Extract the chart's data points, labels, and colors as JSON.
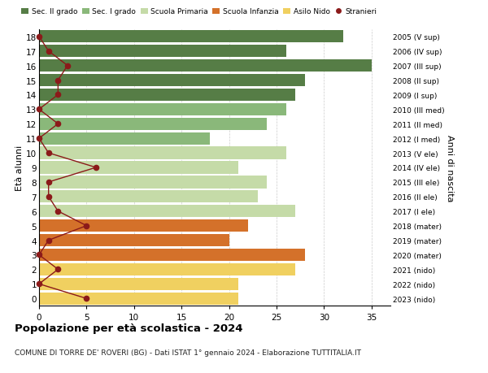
{
  "ages": [
    18,
    17,
    16,
    15,
    14,
    13,
    12,
    11,
    10,
    9,
    8,
    7,
    6,
    5,
    4,
    3,
    2,
    1,
    0
  ],
  "right_labels": [
    "2005 (V sup)",
    "2006 (IV sup)",
    "2007 (III sup)",
    "2008 (II sup)",
    "2009 (I sup)",
    "2010 (III med)",
    "2011 (II med)",
    "2012 (I med)",
    "2013 (V ele)",
    "2014 (IV ele)",
    "2015 (III ele)",
    "2016 (II ele)",
    "2017 (I ele)",
    "2018 (mater)",
    "2019 (mater)",
    "2020 (mater)",
    "2021 (nido)",
    "2022 (nido)",
    "2023 (nido)"
  ],
  "bar_values": [
    32,
    26,
    35,
    28,
    27,
    26,
    24,
    18,
    26,
    21,
    24,
    23,
    27,
    22,
    20,
    28,
    27,
    21,
    21
  ],
  "bar_colors": [
    "#567d46",
    "#567d46",
    "#567d46",
    "#567d46",
    "#567d46",
    "#8ab87a",
    "#8ab87a",
    "#8ab87a",
    "#c5dba8",
    "#c5dba8",
    "#c5dba8",
    "#c5dba8",
    "#c5dba8",
    "#d4712a",
    "#d4712a",
    "#d4712a",
    "#f0d060",
    "#f0d060",
    "#f0d060"
  ],
  "stranieri_values": [
    0,
    1,
    3,
    2,
    2,
    0,
    2,
    0,
    1,
    6,
    1,
    1,
    2,
    5,
    1,
    0,
    2,
    0,
    5
  ],
  "stranieri_color": "#8b1a1a",
  "stranieri_line_color": "#8b1a1a",
  "legend_labels": [
    "Sec. II grado",
    "Sec. I grado",
    "Scuola Primaria",
    "Scuola Infanzia",
    "Asilo Nido",
    "Stranieri"
  ],
  "legend_colors": [
    "#567d46",
    "#8ab87a",
    "#c5dba8",
    "#d4712a",
    "#f0d060",
    "#8b1a1a"
  ],
  "ylabel_left": "Età alunni",
  "ylabel_right": "Anni di nascita",
  "title": "Popolazione per età scolastica - 2024",
  "subtitle": "COMUNE DI TORRE DE' ROVERI (BG) - Dati ISTAT 1° gennaio 2024 - Elaborazione TUTTITALIA.IT",
  "xlim": [
    0,
    37
  ],
  "background_color": "#ffffff",
  "grid_color": "#cccccc",
  "bar_height": 0.85
}
